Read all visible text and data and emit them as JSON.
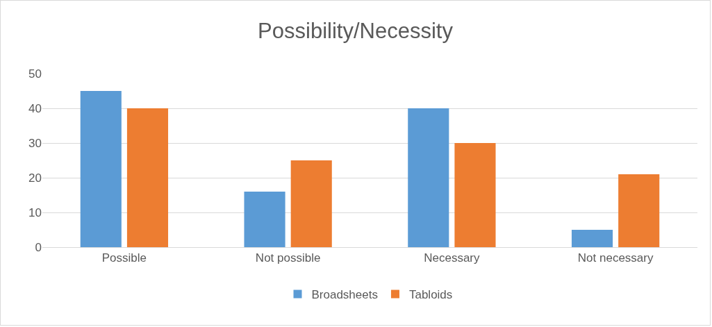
{
  "chart_data": {
    "type": "bar",
    "title": "Possibility/Necessity",
    "categories": [
      "Possible",
      "Not possible",
      "Necessary",
      "Not necessary"
    ],
    "series": [
      {
        "name": "Broadsheets",
        "color": "#5b9bd5",
        "values": [
          45,
          16,
          40,
          5
        ]
      },
      {
        "name": "Tabloids",
        "color": "#ed7d31",
        "values": [
          40,
          25,
          30,
          21
        ]
      }
    ],
    "ylim": [
      0,
      50
    ],
    "yticks": [
      0,
      10,
      20,
      30,
      40,
      50
    ],
    "grid": "y",
    "legend": "bottom"
  }
}
